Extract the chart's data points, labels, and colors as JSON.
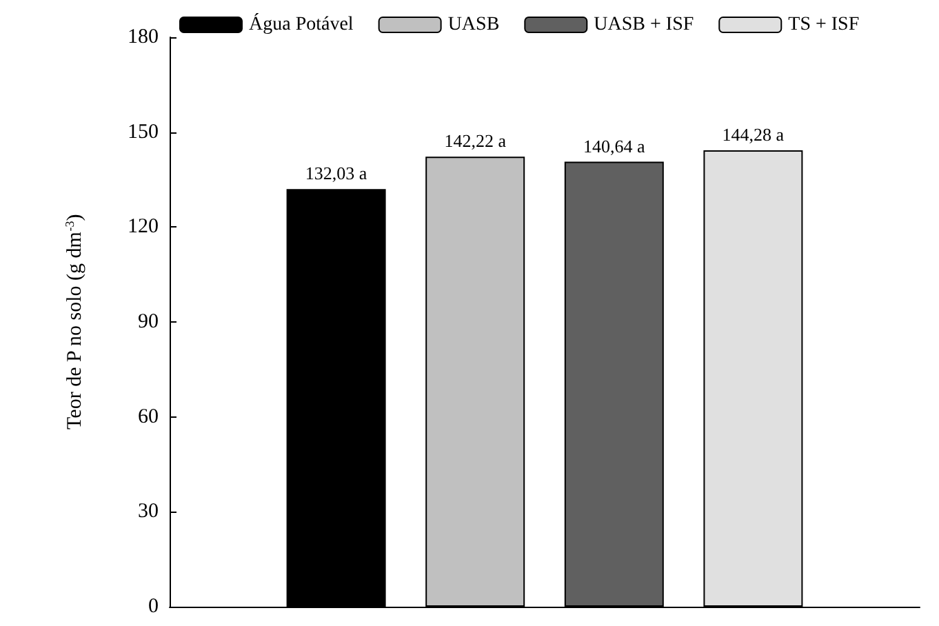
{
  "chart_data": {
    "type": "bar",
    "ylabel": "Teor de P no solo (g dm$^{-3}$)",
    "categories": [
      null
    ],
    "series": [
      {
        "name": "Água Potável",
        "color": "#000000",
        "values": [
          132.03
        ],
        "value_labels": [
          "132,03 a"
        ]
      },
      {
        "name": "UASB",
        "color": "#c0c0c0",
        "values": [
          142.22
        ],
        "value_labels": [
          "142,22 a"
        ]
      },
      {
        "name": "UASB + ISF",
        "color": "#606060",
        "values": [
          140.64
        ],
        "value_labels": [
          "140,64 a"
        ]
      },
      {
        "name": "TS + ISF",
        "color": "#e0e0e0",
        "values": [
          144.28
        ],
        "value_labels": [
          "144,28 a"
        ]
      }
    ],
    "ylim": [
      0,
      180
    ],
    "yticks": [
      0,
      30,
      60,
      90,
      120,
      150,
      180
    ],
    "grid": false,
    "legend": "top"
  }
}
